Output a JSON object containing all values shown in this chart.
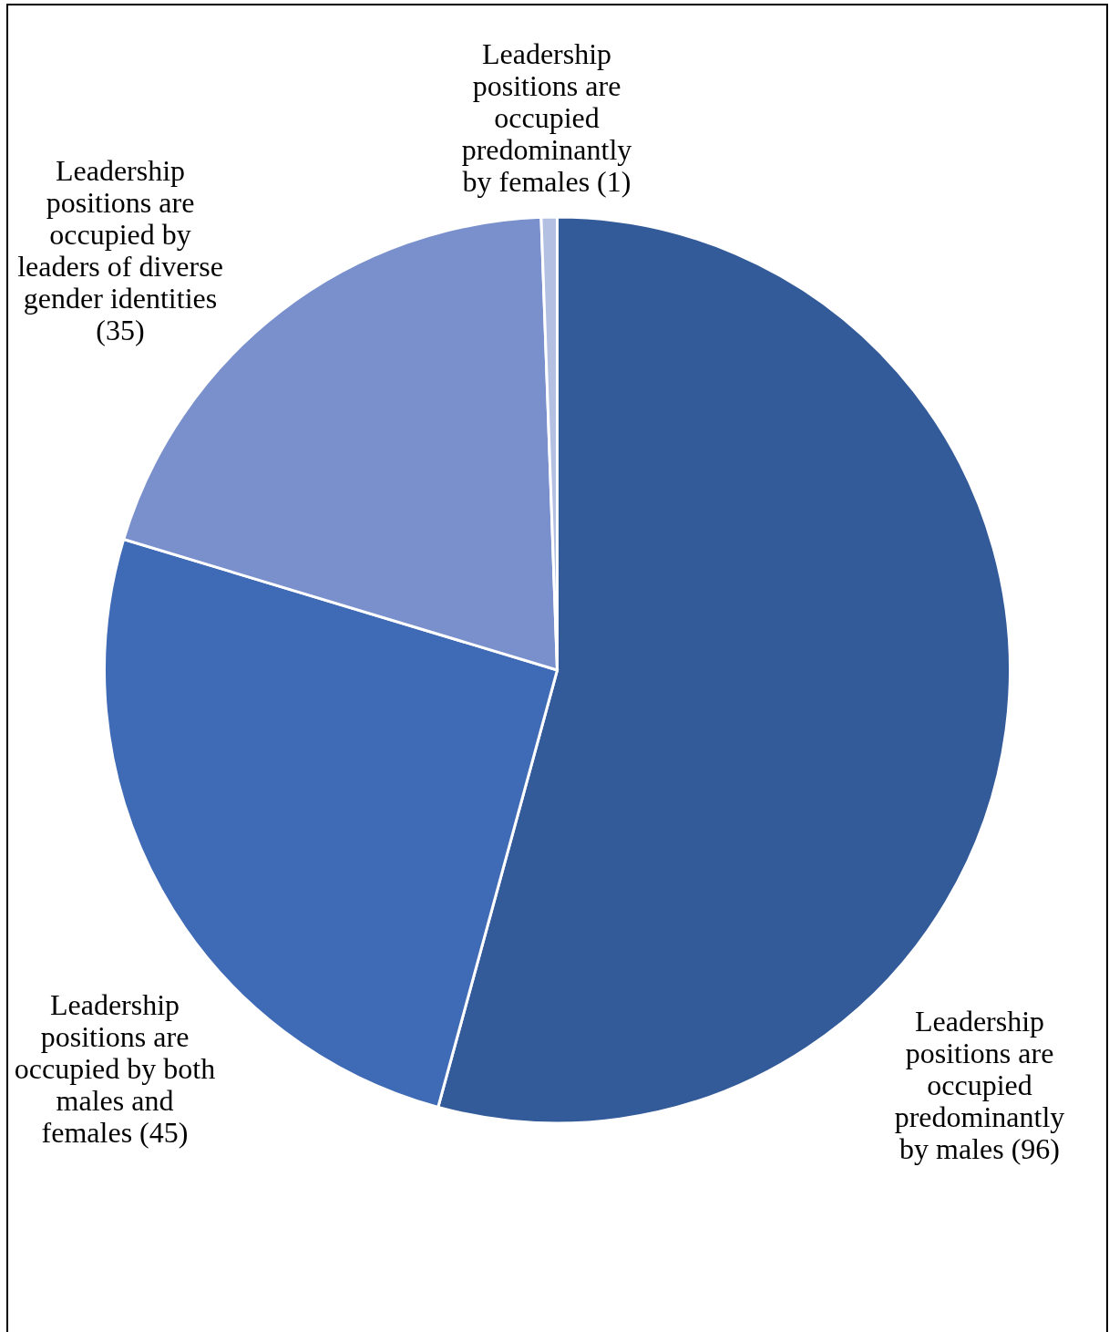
{
  "chart_data": {
    "type": "pie",
    "categories": [
      "Leadership positions are occupied predominantly by males",
      "Leadership positions are occupied by both males and females",
      "Leadership positions are occupied by leaders of diverse gender identities",
      "Leadership positions are occupied predominantly by females"
    ],
    "values": [
      96,
      45,
      35,
      1
    ],
    "value_labels": [
      "(96)",
      "(45)",
      "(35)",
      "(1)"
    ],
    "colors": [
      "#335a99",
      "#3f6ab5",
      "#7990cc",
      "#b3c0e2"
    ]
  }
}
